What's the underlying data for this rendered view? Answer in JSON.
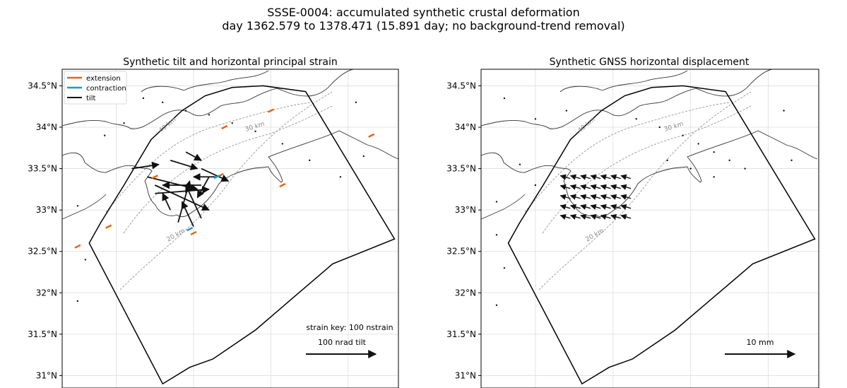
{
  "figure": {
    "title_line1": "SSSE-0004: accumulated synthetic crustal deformation",
    "title_line2": "day 1362.579 to 1378.471 (15.891 day; no background-trend removal)"
  },
  "colors": {
    "extension": "#e8650a",
    "contraction": "#1a9bc9",
    "tilt": "#111111",
    "coast": "#333333",
    "fault_box": "#000000",
    "grid": "#dddddd",
    "contour": "#888888"
  },
  "chart_data": [
    {
      "type": "map",
      "panel": "tilt_strain",
      "title": "Synthetic tilt and horizontal principal strain",
      "xlim": [
        131.3,
        135.65
      ],
      "ylim": [
        30.85,
        34.7
      ],
      "x_ticks": [
        132,
        133,
        134,
        135
      ],
      "x_tick_labels": [
        "132°E",
        "133°E",
        "134°E",
        "135°E"
      ],
      "y_ticks": [
        31,
        31.5,
        32,
        32.5,
        33,
        33.5,
        34,
        34.5
      ],
      "y_tick_labels": [
        "31°N",
        "31.5°N",
        "32°N",
        "32.5°N",
        "33°N",
        "33.5°N",
        "34°N",
        "34.5°N"
      ],
      "grid": true,
      "legend": {
        "placement": "top-left",
        "entries": [
          {
            "label": "extension",
            "color": "#e8650a"
          },
          {
            "label": "contraction",
            "color": "#1a9bc9"
          },
          {
            "label": "tilt",
            "color": "#111111"
          }
        ]
      },
      "contour_labels": [
        "40 km",
        "30 km",
        "20 km"
      ],
      "key_text": [
        "strain key: 100 nstrain",
        "100 nrad tilt"
      ],
      "fault_polygon": [
        [
          131.65,
          32.6
        ],
        [
          131.8,
          32.85
        ],
        [
          132.1,
          33.3
        ],
        [
          132.45,
          33.85
        ],
        [
          132.85,
          34.2
        ],
        [
          133.15,
          34.38
        ],
        [
          133.5,
          34.48
        ],
        [
          133.9,
          34.5
        ],
        [
          134.45,
          34.43
        ],
        [
          135.6,
          32.65
        ],
        [
          134.8,
          32.35
        ],
        [
          134.3,
          31.95
        ],
        [
          133.8,
          31.55
        ],
        [
          133.25,
          31.2
        ],
        [
          132.95,
          31.1
        ],
        [
          132.6,
          30.9
        ],
        [
          131.65,
          32.6
        ]
      ],
      "tilt_vectors": [
        {
          "x": 132.2,
          "y": 33.5,
          "u": 0.35,
          "v": 0.05
        },
        {
          "x": 132.4,
          "y": 33.4,
          "u": 0.65,
          "v": -0.15
        },
        {
          "x": 132.5,
          "y": 33.3,
          "u": 0.7,
          "v": -0.3
        },
        {
          "x": 132.5,
          "y": 33.2,
          "u": 0.7,
          "v": 0.05
        },
        {
          "x": 132.7,
          "y": 33.0,
          "u": -0.1,
          "v": 0.2
        },
        {
          "x": 133.0,
          "y": 32.8,
          "u": -0.15,
          "v": 0.3
        },
        {
          "x": 133.1,
          "y": 32.9,
          "u": -0.2,
          "v": 0.4
        },
        {
          "x": 132.8,
          "y": 32.85,
          "u": 0.15,
          "v": 0.5
        },
        {
          "x": 133.1,
          "y": 33.5,
          "u": 0.35,
          "v": -0.15
        },
        {
          "x": 133.3,
          "y": 33.4,
          "u": -0.3,
          "v": 0.0
        },
        {
          "x": 133.1,
          "y": 33.3,
          "u": -0.5,
          "v": 0.0
        },
        {
          "x": 132.7,
          "y": 33.6,
          "u": 0.35,
          "v": -0.1
        },
        {
          "x": 132.9,
          "y": 33.7,
          "u": 0.2,
          "v": -0.1
        },
        {
          "x": 133.2,
          "y": 33.4,
          "u": -0.15,
          "v": -0.25
        }
      ],
      "strain_bars": [
        {
          "x": 132.5,
          "y": 33.4,
          "color": "#e8650a"
        },
        {
          "x": 133.35,
          "y": 33.42,
          "color": "#e8650a"
        },
        {
          "x": 133.3,
          "y": 33.4,
          "color": "#1a9bc9"
        },
        {
          "x": 133.0,
          "y": 32.72,
          "color": "#e8650a"
        },
        {
          "x": 132.95,
          "y": 32.77,
          "color": "#1a9bc9"
        },
        {
          "x": 131.9,
          "y": 32.8,
          "color": "#e8650a"
        },
        {
          "x": 131.5,
          "y": 32.56,
          "color": "#e8650a"
        },
        {
          "x": 135.3,
          "y": 33.9,
          "color": "#e8650a"
        },
        {
          "x": 134.0,
          "y": 34.2,
          "color": "#e8650a"
        },
        {
          "x": 133.4,
          "y": 34.0,
          "color": "#e8650a"
        },
        {
          "x": 134.15,
          "y": 33.3,
          "color": "#e8650a"
        }
      ]
    },
    {
      "type": "map",
      "panel": "gnss",
      "title": "Synthetic GNSS horizontal displacement",
      "xlim": [
        131.3,
        135.65
      ],
      "ylim": [
        30.85,
        34.7
      ],
      "x_ticks": [
        132,
        133,
        134,
        135
      ],
      "x_tick_labels": [
        "132°E",
        "133°E",
        "134°E",
        "135°E"
      ],
      "y_ticks": [
        31,
        31.5,
        32,
        32.5,
        33,
        33.5,
        34,
        34.5
      ],
      "y_tick_labels": [
        "31°N",
        "31.5°N",
        "32°N",
        "32.5°N",
        "33°N",
        "33.5°N",
        "34°N",
        "34.5°N"
      ],
      "grid": true,
      "contour_labels": [
        "40 km",
        "30 km",
        "20 km"
      ],
      "key_text": [
        "10 mm"
      ],
      "fault_polygon": [
        [
          131.65,
          32.6
        ],
        [
          131.8,
          32.85
        ],
        [
          132.1,
          33.3
        ],
        [
          132.45,
          33.85
        ],
        [
          132.85,
          34.2
        ],
        [
          133.15,
          34.38
        ],
        [
          133.5,
          34.48
        ],
        [
          133.9,
          34.5
        ],
        [
          134.45,
          34.43
        ],
        [
          135.6,
          32.65
        ],
        [
          134.8,
          32.35
        ],
        [
          134.3,
          31.95
        ],
        [
          133.8,
          31.55
        ],
        [
          133.25,
          31.2
        ],
        [
          132.95,
          31.1
        ],
        [
          132.6,
          30.9
        ],
        [
          131.65,
          32.6
        ]
      ]
    }
  ]
}
